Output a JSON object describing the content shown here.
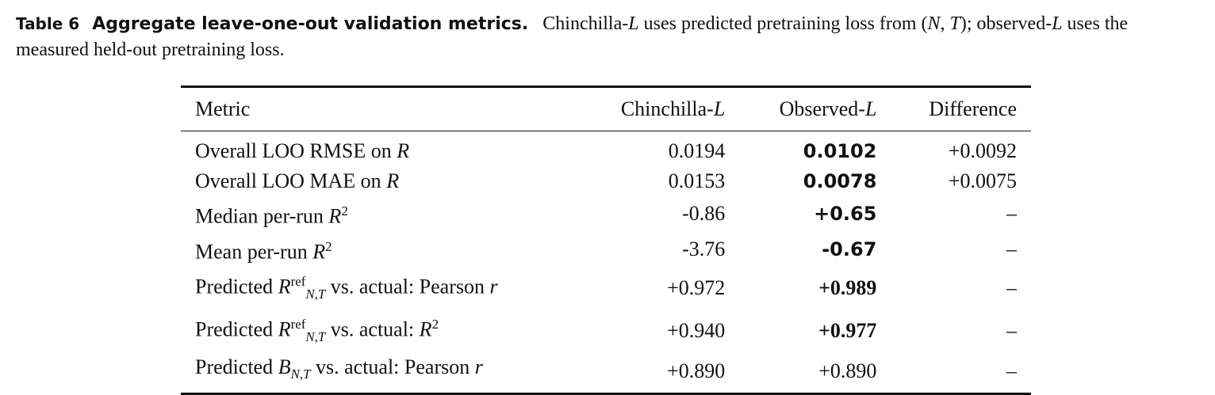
{
  "caption": {
    "label": "Table 6",
    "title": "Aggregate leave-one-out validation metrics.",
    "text": "Chinchilla-L uses predicted pretraining loss from (N, T); observed-L uses the measured held-out pretraining loss."
  },
  "table": {
    "headers": [
      "Metric",
      "Chinchilla-L",
      "Observed-L",
      "Difference"
    ],
    "rows": [
      {
        "metric": "Overall LOO RMSE on R",
        "chinchilla": "0.0194",
        "observed": "0.0102",
        "difference": "+0.0092"
      },
      {
        "metric": "Overall LOO MAE on R",
        "chinchilla": "0.0153",
        "observed": "0.0078",
        "difference": "+0.0075"
      },
      {
        "metric": "Median per-run R²",
        "chinchilla": "-0.86",
        "observed": "+0.65",
        "difference": "–"
      },
      {
        "metric": "Mean per-run R²",
        "chinchilla": "-3.76",
        "observed": "-0.67",
        "difference": "–"
      },
      {
        "metric": "Predicted R^ref_{N,T} vs. actual: Pearson r",
        "chinchilla": "+0.972",
        "observed": "+0.989",
        "difference": "–"
      },
      {
        "metric": "Predicted R^ref_{N,T} vs. actual: R²",
        "chinchilla": "+0.940",
        "observed": "+0.977",
        "difference": "–"
      },
      {
        "metric": "Predicted B_{N,T} vs. actual: Pearson r",
        "chinchilla": "+0.890",
        "observed": "+0.890",
        "difference": "–"
      }
    ]
  }
}
